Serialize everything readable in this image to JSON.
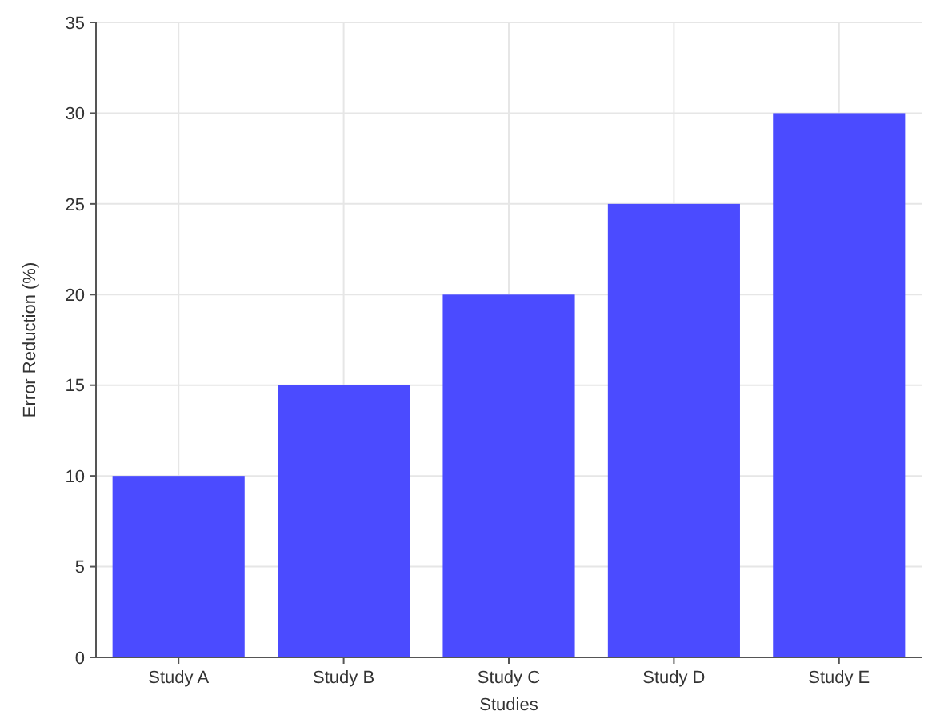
{
  "chart_data": {
    "type": "bar",
    "xlabel": "Studies",
    "ylabel": "Error Reduction (%)",
    "categories": [
      "Study A",
      "Study B",
      "Study C",
      "Study D",
      "Study E"
    ],
    "values": [
      10,
      15,
      20,
      25,
      30
    ],
    "color": "#4b4bff",
    "ylim": [
      0,
      35
    ],
    "yticks": [
      0,
      5,
      10,
      15,
      20,
      25,
      30,
      35
    ],
    "grid": true
  }
}
